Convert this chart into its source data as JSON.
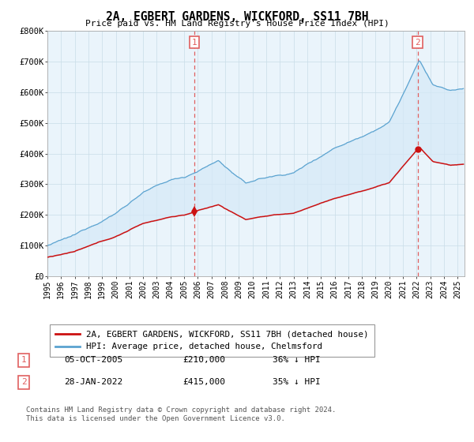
{
  "title": "2A, EGBERT GARDENS, WICKFORD, SS11 7BH",
  "subtitle": "Price paid vs. HM Land Registry's House Price Index (HPI)",
  "hpi_label": "HPI: Average price, detached house, Chelmsford",
  "property_label": "2A, EGBERT GARDENS, WICKFORD, SS11 7BH (detached house)",
  "sale1_date": "05-OCT-2005",
  "sale1_price": 210000,
  "sale1_text": "36% ↓ HPI",
  "sale2_date": "28-JAN-2022",
  "sale2_price": 415000,
  "sale2_text": "35% ↓ HPI",
  "hpi_color": "#5ba3d0",
  "hpi_fill_color": "#d6eaf8",
  "property_color": "#cc1111",
  "dashed_line_color": "#e06060",
  "ylim": [
    0,
    800000
  ],
  "xlim_start": 1995.0,
  "xlim_end": 2025.5,
  "sale1_x": 2005.75,
  "sale2_x": 2022.07,
  "footer1": "Contains HM Land Registry data © Crown copyright and database right 2024.",
  "footer2": "This data is licensed under the Open Government Licence v3.0.",
  "bg_color": "#eaf4fb"
}
